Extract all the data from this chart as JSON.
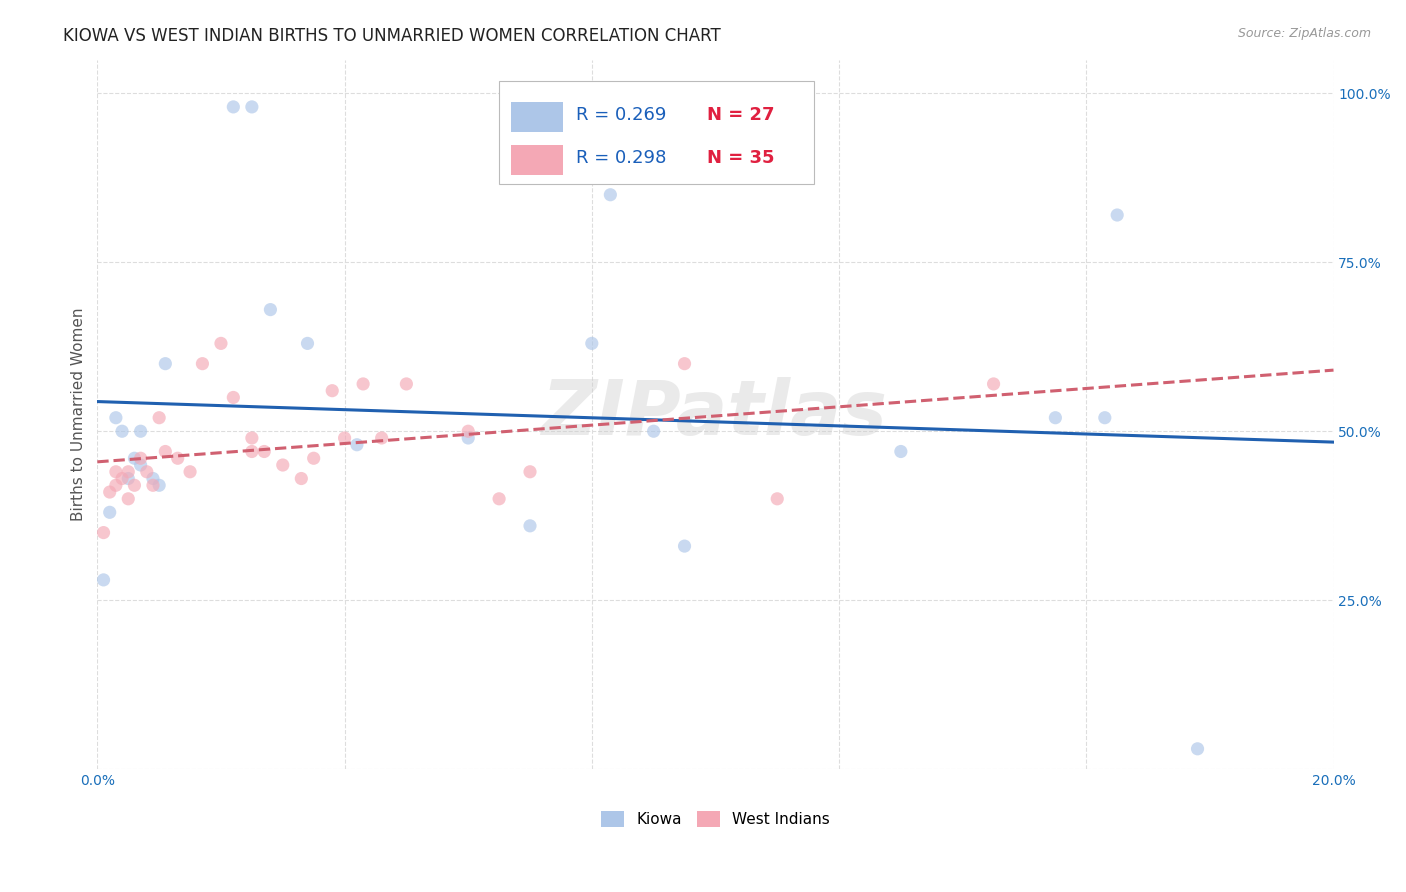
{
  "title": "KIOWA VS WEST INDIAN BIRTHS TO UNMARRIED WOMEN CORRELATION CHART",
  "source": "Source: ZipAtlas.com",
  "ylabel": "Births to Unmarried Women",
  "xlim": [
    0.0,
    0.2
  ],
  "ylim": [
    0.0,
    1.05
  ],
  "kiowa_R": "0.269",
  "kiowa_N": "27",
  "westindian_R": "0.298",
  "westindian_N": "35",
  "kiowa_color": "#adc6e8",
  "kiowa_line_color": "#2060b0",
  "westindian_color": "#f4a8b5",
  "westindian_line_color": "#d06070",
  "legend_R_color": "#1a5fba",
  "legend_N_color": "#e02040",
  "background_color": "#ffffff",
  "grid_color": "#dddddd",
  "title_fontsize": 12,
  "label_fontsize": 11,
  "tick_fontsize": 10,
  "marker_size": 90,
  "marker_alpha": 0.65,
  "line_width": 2.2,
  "kiowa_x": [
    0.001,
    0.002,
    0.003,
    0.004,
    0.005,
    0.006,
    0.007,
    0.007,
    0.009,
    0.01,
    0.011,
    0.022,
    0.025,
    0.028,
    0.034,
    0.042,
    0.06,
    0.07,
    0.08,
    0.083,
    0.09,
    0.095,
    0.13,
    0.155,
    0.163,
    0.178,
    0.165
  ],
  "kiowa_y": [
    0.28,
    0.38,
    0.52,
    0.5,
    0.43,
    0.46,
    0.5,
    0.45,
    0.43,
    0.42,
    0.6,
    0.98,
    0.98,
    0.68,
    0.63,
    0.48,
    0.49,
    0.36,
    0.63,
    0.85,
    0.5,
    0.33,
    0.47,
    0.52,
    0.52,
    0.03,
    0.82
  ],
  "westindian_x": [
    0.001,
    0.002,
    0.003,
    0.003,
    0.004,
    0.005,
    0.005,
    0.006,
    0.007,
    0.008,
    0.009,
    0.01,
    0.011,
    0.013,
    0.015,
    0.017,
    0.02,
    0.022,
    0.025,
    0.025,
    0.027,
    0.03,
    0.033,
    0.035,
    0.038,
    0.04,
    0.043,
    0.046,
    0.05,
    0.06,
    0.065,
    0.07,
    0.095,
    0.11,
    0.145
  ],
  "westindian_y": [
    0.35,
    0.41,
    0.42,
    0.44,
    0.43,
    0.44,
    0.4,
    0.42,
    0.46,
    0.44,
    0.42,
    0.52,
    0.47,
    0.46,
    0.44,
    0.6,
    0.63,
    0.55,
    0.47,
    0.49,
    0.47,
    0.45,
    0.43,
    0.46,
    0.56,
    0.49,
    0.57,
    0.49,
    0.57,
    0.5,
    0.4,
    0.44,
    0.6,
    0.4,
    0.57
  ],
  "watermark": "ZIPatlas"
}
